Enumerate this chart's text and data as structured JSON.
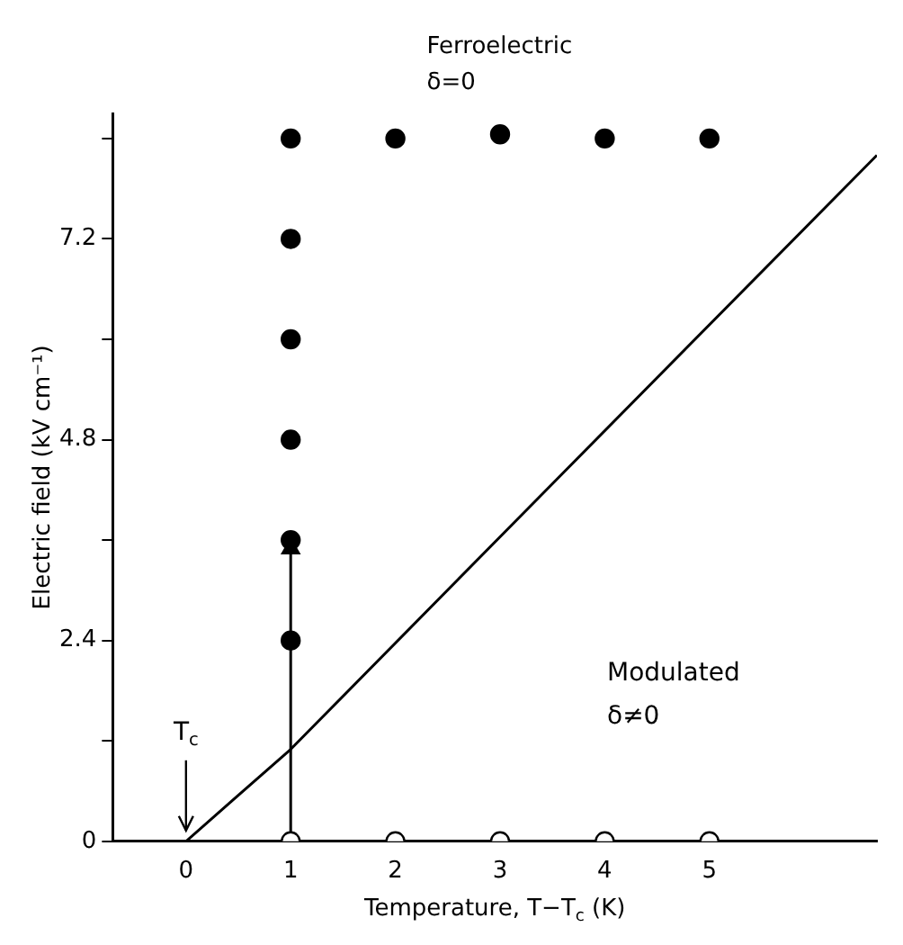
{
  "chart_data": {
    "type": "scatter",
    "xlabel": "Temperature, T−T$_{c}$ (K)",
    "ylabel": "Electric field (kV cm⁻¹)",
    "xlim": [
      -0.7,
      6.6
    ],
    "ylim": [
      0,
      8.7
    ],
    "xticks": [
      0,
      1,
      2,
      3,
      4,
      5
    ],
    "yticks": [
      0,
      {
        "value": 1.2,
        "label": null
      },
      2.4,
      {
        "value": 3.6,
        "label": null
      },
      4.8,
      {
        "value": 6.0,
        "label": null
      },
      7.2,
      {
        "value": 8.4,
        "label": null
      }
    ],
    "grid": false,
    "legend": false,
    "marker": "circle",
    "series": [
      {
        "color": "#000000",
        "x": [
          1,
          1,
          1,
          1,
          1,
          1,
          2,
          3,
          4,
          5
        ],
        "values": [
          2.4,
          3.6,
          4.8,
          6.0,
          7.2,
          8.4,
          8.4,
          8.45,
          8.4,
          8.4
        ]
      },
      {
        "color": "#ffffff",
        "x": [
          1,
          2,
          3,
          4,
          5
        ],
        "values": [
          0,
          0,
          0,
          0,
          0
        ]
      },
      {
        "type": "line",
        "marker": "none",
        "color": "#000000",
        "x": [
          0,
          1,
          3.6,
          6.6
        ],
        "values": [
          0,
          1.1,
          4.4,
          8.2
        ]
      },
      {
        "type": "line",
        "marker": "triangle",
        "color": "#000000",
        "x": [
          1,
          1
        ],
        "values": [
          0,
          3.5
        ]
      }
    ],
    "annotations": [
      "Ferroelectric\nδ=0",
      "Modulated\nδ≠0",
      {
        "text": "T$_{c}$",
        "x": 0,
        "y": 0
      }
    ]
  }
}
